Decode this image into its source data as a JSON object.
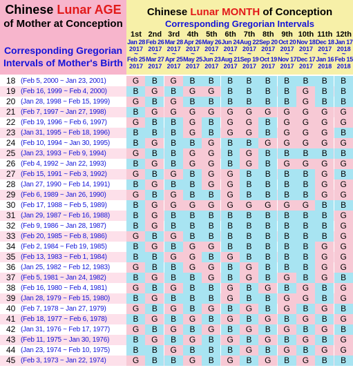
{
  "header": {
    "age_title_prefix": "Chinese ",
    "age_title_highlight": "Lunar AGE",
    "age_subtitle": "of Mother at Conception",
    "age_gregorian_line1": "Corresponding Gregorian",
    "age_gregorian_line2": "Intervals of Mother's Birth",
    "month_title_prefix": "Chinese ",
    "month_title_lunar": "Lunar",
    "month_title_month": " MONTH",
    "month_title_suffix": " of Conception",
    "month_subtitle": "Corresponding Gregorian Intervals"
  },
  "months": [
    {
      "ord": "1st",
      "start": "Jan 28",
      "start_year": "2017",
      "end": "Feb 25",
      "end_year": "2017"
    },
    {
      "ord": "2nd",
      "start": "Feb 26",
      "start_year": "2017",
      "end": "Mar 27",
      "end_year": "2017"
    },
    {
      "ord": "3rd",
      "start": "Mar 28",
      "start_year": "2017",
      "end": "Apr 25",
      "end_year": "2017"
    },
    {
      "ord": "4th",
      "start": "Apr 26",
      "start_year": "2017",
      "end": "May 25",
      "end_year": "2017"
    },
    {
      "ord": "5th",
      "start": "May 26",
      "start_year": "2017",
      "end": "Jun 23",
      "end_year": "2017"
    },
    {
      "ord": "6th",
      "start": "Jun 24",
      "start_year": "2017",
      "end": "Aug 21",
      "end_year": "2017"
    },
    {
      "ord": "7th",
      "start": "Aug 22",
      "start_year": "2017",
      "end": "Sep 19",
      "end_year": "2017"
    },
    {
      "ord": "8th",
      "start": "Sep 20",
      "start_year": "2017",
      "end": "Oct 19",
      "end_year": "2017"
    },
    {
      "ord": "9th",
      "start": "Oct 20",
      "start_year": "2017",
      "end": "Nov 17",
      "end_year": "2017"
    },
    {
      "ord": "10th",
      "start": "Nov 18",
      "start_year": "2017",
      "end": "Dec 17",
      "end_year": "2017"
    },
    {
      "ord": "11th",
      "start": "Dec 18",
      "start_year": "2017",
      "end": "Jan 16",
      "end_year": "2018"
    },
    {
      "ord": "12th",
      "start": "Jan 17",
      "start_year": "2018",
      "end": "Feb 15",
      "end_year": "2018"
    }
  ],
  "tilde": "~",
  "rows": [
    {
      "age": "18",
      "range": "(Feb 5, 2000 ~ Jan 23, 2001)",
      "cells": "GBGBBBBBBBBB"
    },
    {
      "age": "19",
      "range": "(Feb 16, 1999 ~ Feb 4, 2000)",
      "cells": "BGBGGBBBBGBB"
    },
    {
      "age": "20",
      "range": "(Jan 28, 1998 ~ Feb 15, 1999)",
      "cells": "GBGBBBBBBGBB"
    },
    {
      "age": "21",
      "range": "(Feb 7, 1997 ~ Jan 27, 1998)",
      "cells": "BGGGGGGGGGGG"
    },
    {
      "age": "22",
      "range": "(Feb 19, 1996 ~ Feb 6, 1997)",
      "cells": "GBBGBGGBGGGG"
    },
    {
      "age": "23",
      "range": "(Jan 31, 1995 ~ Feb 18, 1996)",
      "cells": "BBBGBGGBGGGB"
    },
    {
      "age": "24",
      "range": "(Feb 10, 1994 ~ Jan 30, 1995)",
      "cells": "BGBBGBBGGGGG"
    },
    {
      "age": "25",
      "range": "(Jan 23, 1993 ~ Feb 9, 1994)",
      "cells": "GBBGGBGBBBBB"
    },
    {
      "age": "26",
      "range": "(Feb 4, 1992 ~ Jan 22, 1993)",
      "cells": "BGBGGBGBGGGG"
    },
    {
      "age": "27",
      "range": "(Feb 15, 1991 ~ Feb 3, 1992)",
      "cells": "GBGBGGBBBBGB"
    },
    {
      "age": "28",
      "range": "(Jan 27, 1990 ~ Feb 14, 1991)",
      "cells": "BGBBGGBBBBGG"
    },
    {
      "age": "29",
      "range": "(Feb 6, 1989 ~ Jan 26, 1990)",
      "cells": "GBGBBGBBBBGG"
    },
    {
      "age": "30",
      "range": "(Feb 17, 1988 ~ Feb 5, 1989)",
      "cells": "BGGGGGGGGGBB"
    },
    {
      "age": "31",
      "range": "(Jan 29, 1987 ~ Feb 16, 1988)",
      "cells": "BGBBBBBBBBBG"
    },
    {
      "age": "32",
      "range": "(Feb 9, 1986 ~ Jan 28, 1987)",
      "cells": "BGBBBBBBBBBG"
    },
    {
      "age": "33",
      "range": "(Feb 20, 1985 ~ Feb 8, 1986)",
      "cells": "GBGBBBBBBBBG"
    },
    {
      "age": "34",
      "range": "(Feb 2, 1984 ~ Feb 19, 1985)",
      "cells": "BGBGGBBBBBGG"
    },
    {
      "age": "35",
      "range": "(Feb 13, 1983 ~ Feb 1, 1984)",
      "cells": "BBGGBGBBBBGG"
    },
    {
      "age": "36",
      "range": "(Jan 25, 1982 ~ Feb 12, 1983)",
      "cells": "GBBGGBGBBBGG"
    },
    {
      "age": "37",
      "range": "(Feb 5, 1981 ~ Jan 24, 1982)",
      "cells": "BGBBGBGBGBGB"
    },
    {
      "age": "38",
      "range": "(Feb 16, 1980 ~ Feb 4, 1981)",
      "cells": "GBGBBGBGBGBG"
    },
    {
      "age": "39",
      "range": "(Jan 28, 1979 ~ Feb 15, 1980)",
      "cells": "BGBBBGBBGGBG"
    },
    {
      "age": "40",
      "range": "(Feb 7, 1978 ~ Jan 27, 1979)",
      "cells": "GBGBGBGBGBGB"
    },
    {
      "age": "41",
      "range": "(Feb 18, 1977 ~ Feb 6, 1978)",
      "cells": "BGBGBGBGBGBG"
    },
    {
      "age": "42",
      "range": "(Jan 31, 1976 ~ Feb 17, 1977)",
      "cells": "GBGBGBGBGBGB"
    },
    {
      "age": "43",
      "range": "(Feb 11, 1975 ~ Jan 30, 1976)",
      "cells": "BGBGBGBGBGBG"
    },
    {
      "age": "44",
      "range": "(Jan 23, 1974 ~ Feb 10, 1975)",
      "cells": "BBGBBBGBGBGG"
    },
    {
      "age": "45",
      "range": "(Feb 3, 1973 ~ Jan 22, 1974)",
      "cells": "GBBGBGBGBGBB"
    }
  ],
  "colors": {
    "age_header_bg": "#f7b5cc",
    "month_header_bg": "#f7f0a8",
    "boy_cell": "#a8e4f2",
    "girl_cell": "#f7c9d5",
    "title_red": "#e21a1a",
    "label_blue": "#1414d8"
  }
}
